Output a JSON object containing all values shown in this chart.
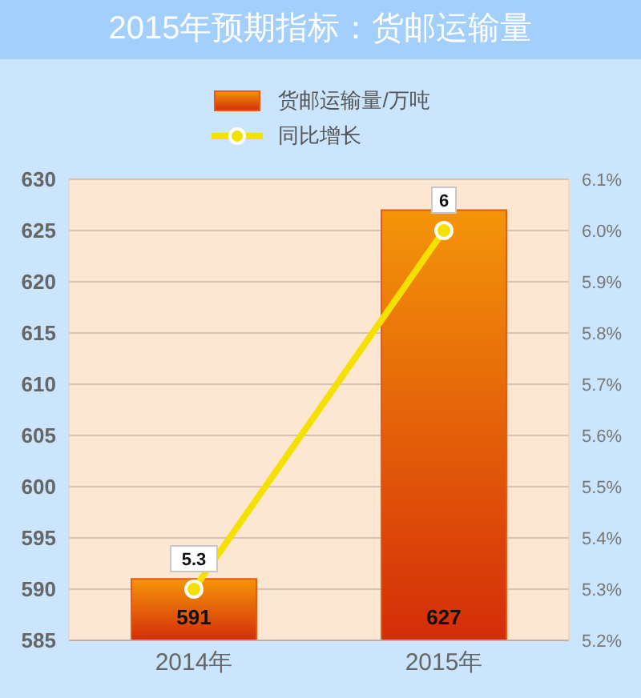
{
  "chart_data": {
    "type": "bar",
    "title": "2015年预期指标：货邮运输量",
    "categories": [
      "2014年",
      "2015年"
    ],
    "series": [
      {
        "name": "货邮运输量/万吨",
        "color": "#e85a12",
        "values": [
          591,
          627
        ]
      },
      {
        "name": "同比增长",
        "type": "line",
        "axis": "y2",
        "color": "#f5e100",
        "values": [
          5.3,
          6
        ]
      }
    ],
    "ylim": [
      585,
      630
    ],
    "yticks": [
      585,
      590,
      595,
      600,
      605,
      610,
      615,
      620,
      625,
      630
    ],
    "y2lim": [
      5.2,
      6.1
    ],
    "y2ticks": [
      {
        "value": 5.2,
        "label": "5.2%"
      },
      {
        "value": 5.3,
        "label": "5.3%"
      },
      {
        "value": 5.4,
        "label": "5.4%"
      },
      {
        "value": 5.5,
        "label": "5.5%"
      },
      {
        "value": 5.6,
        "label": "5.6%"
      },
      {
        "value": 5.7,
        "label": "5.7%"
      },
      {
        "value": 5.8,
        "label": "5.8%"
      },
      {
        "value": 5.9,
        "label": "5.9%"
      },
      {
        "value": 6.0,
        "label": "6.0%"
      },
      {
        "value": 6.1,
        "label": "6.1%"
      }
    ],
    "grid": "y",
    "legend": "top",
    "data_labels": true,
    "marker": "circle",
    "line_style": "solid"
  }
}
